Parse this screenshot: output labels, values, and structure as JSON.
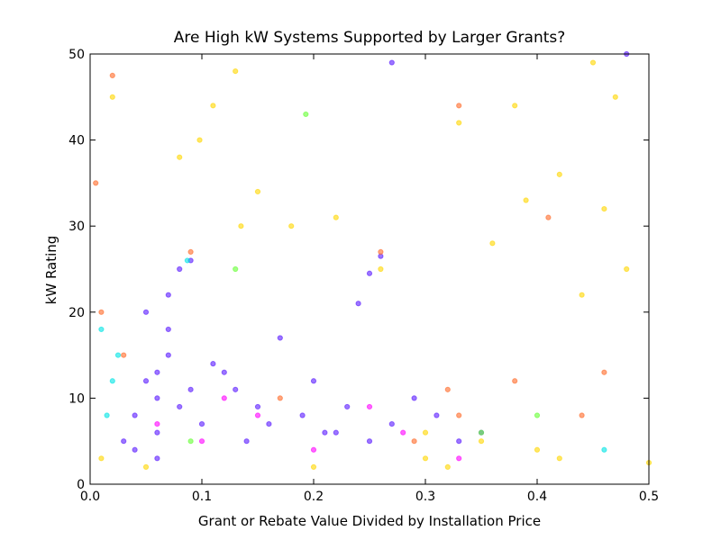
{
  "chart_data": {
    "type": "scatter",
    "title": "Are High kW Systems Supported by Larger Grants?",
    "x_label": "Grant or Rebate Value Divided by Installation Price",
    "y_label": "kW Rating",
    "xlim": [
      0,
      0.5
    ],
    "ylim": [
      0,
      50
    ],
    "xticks": [
      {
        "value": 0,
        "label": "0.0"
      },
      0.1,
      0.2,
      0.3,
      0.4,
      0.5
    ],
    "yticks": [
      0,
      10,
      20,
      30,
      40,
      50
    ],
    "grid": false,
    "series": [
      {
        "color": "#5a1aff",
        "x": [
          0.03,
          0.04,
          0.05,
          0.06,
          0.07,
          0.08,
          0.05,
          0.06,
          0.07,
          0.09,
          0.1,
          0.12,
          0.14,
          0.15,
          0.17,
          0.19,
          0.2,
          0.22,
          0.23,
          0.25,
          0.26,
          0.27,
          0.29,
          0.31,
          0.33,
          0.35,
          0.06,
          0.07,
          0.08,
          0.04,
          0.11,
          0.13,
          0.16,
          0.21,
          0.24,
          0.06,
          0.27,
          0.48,
          0.25,
          0.09
        ],
        "values": [
          5,
          8,
          12,
          10,
          15,
          9,
          20,
          6,
          22,
          11,
          7,
          13,
          5,
          9,
          17,
          8,
          12,
          6,
          9,
          24.5,
          26.5,
          49,
          10,
          8,
          5,
          6,
          3,
          18,
          25,
          4,
          14,
          11,
          7,
          6,
          21,
          13,
          7,
          50,
          5,
          26
        ]
      },
      {
        "color": "#ffd700",
        "x": [
          0.01,
          0.02,
          0.05,
          0.08,
          0.11,
          0.13,
          0.15,
          0.18,
          0.22,
          0.26,
          0.3,
          0.32,
          0.35,
          0.38,
          0.4,
          0.42,
          0.45,
          0.47,
          0.5,
          0.36,
          0.42,
          0.46,
          0.135,
          0.098,
          0.44,
          0.3,
          0.39,
          0.33,
          0.48,
          0.2
        ],
        "values": [
          3,
          45,
          2,
          38,
          44,
          48,
          34,
          30,
          31,
          25,
          3,
          2,
          5,
          44,
          4,
          3,
          49,
          45,
          2.5,
          28,
          36,
          32,
          30,
          40,
          22,
          6,
          33,
          42,
          25,
          2
        ]
      },
      {
        "color": "#ff6a2a",
        "x": [
          0.005,
          0.01,
          0.02,
          0.03,
          0.09,
          0.17,
          0.26,
          0.33,
          0.33,
          0.32,
          0.38,
          0.44,
          0.46,
          0.41,
          0.29
        ],
        "values": [
          35,
          20,
          47.5,
          15,
          27,
          10,
          27,
          44,
          8,
          11,
          12,
          8,
          13,
          31,
          5
        ]
      },
      {
        "color": "#00e5e5",
        "x": [
          0.01,
          0.02,
          0.015,
          0.087,
          0.025,
          0.46
        ],
        "values": [
          18,
          12,
          8,
          26,
          15,
          4
        ]
      },
      {
        "color": "#ff00ff",
        "x": [
          0.06,
          0.1,
          0.15,
          0.2,
          0.28,
          0.33,
          0.12,
          0.25
        ],
        "values": [
          7,
          5,
          8,
          4,
          6,
          3,
          10,
          9
        ]
      },
      {
        "color": "#66ff33",
        "x": [
          0.193,
          0.13,
          0.4,
          0.35,
          0.09
        ],
        "values": [
          43,
          25,
          8,
          6,
          5
        ]
      }
    ]
  }
}
